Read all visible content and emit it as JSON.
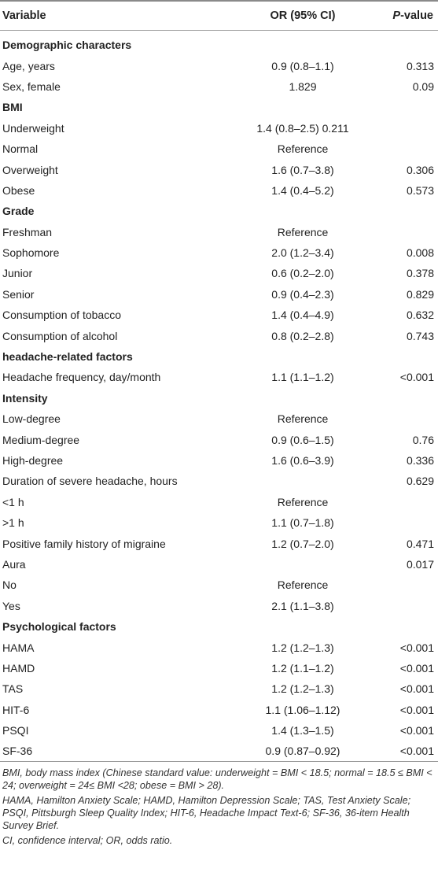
{
  "header": {
    "col1": "Variable",
    "col2": "OR (95% CI)",
    "col3_italic": "P",
    "col3_rest": "-value"
  },
  "rows": [
    {
      "variable": "Demographic characters",
      "or": "",
      "p": "",
      "section": true
    },
    {
      "variable": "Age, years",
      "or": "0.9 (0.8–1.1)",
      "p": "0.313",
      "section": false
    },
    {
      "variable": "Sex, female",
      "or": "1.829",
      "p": "0.09",
      "section": false
    },
    {
      "variable": "BMI",
      "or": "",
      "p": "",
      "section": true
    },
    {
      "variable": "Underweight",
      "or": "1.4 (0.8–2.5) 0.211",
      "p": "",
      "section": false
    },
    {
      "variable": "Normal",
      "or": "Reference",
      "p": "",
      "section": false
    },
    {
      "variable": "Overweight",
      "or": "1.6 (0.7–3.8)",
      "p": "0.306",
      "section": false
    },
    {
      "variable": "Obese",
      "or": "1.4 (0.4–5.2)",
      "p": "0.573",
      "section": false
    },
    {
      "variable": "Grade",
      "or": "",
      "p": "",
      "section": true
    },
    {
      "variable": "Freshman",
      "or": "Reference",
      "p": "",
      "section": false
    },
    {
      "variable": "Sophomore",
      "or": "2.0 (1.2–3.4)",
      "p": "0.008",
      "section": false
    },
    {
      "variable": "Junior",
      "or": "0.6 (0.2–2.0)",
      "p": "0.378",
      "section": false
    },
    {
      "variable": "Senior",
      "or": "0.9 (0.4–2.3)",
      "p": "0.829",
      "section": false
    },
    {
      "variable": "Consumption of tobacco",
      "or": "1.4 (0.4–4.9)",
      "p": "0.632",
      "section": false
    },
    {
      "variable": "Consumption of alcohol",
      "or": "0.8 (0.2–2.8)",
      "p": "0.743",
      "section": false
    },
    {
      "variable": "headache-related factors",
      "or": "",
      "p": "",
      "section": true
    },
    {
      "variable": "Headache frequency, day/month",
      "or": "1.1 (1.1–1.2)",
      "p": "<0.001",
      "section": false
    },
    {
      "variable": "Intensity",
      "or": "",
      "p": "",
      "section": true
    },
    {
      "variable": "Low-degree",
      "or": "Reference",
      "p": "",
      "section": false
    },
    {
      "variable": "Medium-degree",
      "or": "0.9 (0.6–1.5)",
      "p": "0.76",
      "section": false
    },
    {
      "variable": "High-degree",
      "or": "1.6 (0.6–3.9)",
      "p": "0.336",
      "section": false
    },
    {
      "variable": "Duration of severe headache, hours",
      "or": "",
      "p": "0.629",
      "section": false
    },
    {
      "variable": "<1 h",
      "or": "Reference",
      "p": "",
      "section": false
    },
    {
      "variable": ">1 h",
      "or": "1.1 (0.7–1.8)",
      "p": "",
      "section": false
    },
    {
      "variable": "Positive family history of migraine",
      "or": "1.2 (0.7–2.0)",
      "p": "0.471",
      "section": false
    },
    {
      "variable": "Aura",
      "or": "",
      "p": "0.017",
      "section": false
    },
    {
      "variable": "No",
      "or": "Reference",
      "p": "",
      "section": false
    },
    {
      "variable": "Yes",
      "or": "2.1 (1.1–3.8)",
      "p": "",
      "section": false
    },
    {
      "variable": "Psychological factors",
      "or": "",
      "p": "",
      "section": true
    },
    {
      "variable": "HAMA",
      "or": "1.2 (1.2–1.3)",
      "p": "<0.001",
      "section": false
    },
    {
      "variable": "HAMD",
      "or": "1.2 (1.1–1.2)",
      "p": "<0.001",
      "section": false
    },
    {
      "variable": "TAS",
      "or": "1.2 (1.2–1.3)",
      "p": "<0.001",
      "section": false
    },
    {
      "variable": "HIT-6",
      "or": "1.1 (1.06–1.12)",
      "p": "<0.001",
      "section": false
    },
    {
      "variable": "PSQI",
      "or": "1.4 (1.3–1.5)",
      "p": "<0.001",
      "section": false
    },
    {
      "variable": "SF-36",
      "or": "0.9 (0.87–0.92)",
      "p": "<0.001",
      "section": false
    }
  ],
  "footnotes": [
    "BMI, body mass index (Chinese standard value: underweight = BMI < 18.5; normal = 18.5 ≤ BMI < 24; overweight = 24≤ BMI <28; obese = BMI > 28).",
    "HAMA, Hamilton Anxiety Scale; HAMD, Hamilton Depression Scale; TAS, Test Anxiety Scale; PSQI, Pittsburgh Sleep Quality Index; HIT-6, Headache Impact Text-6; SF-36, 36-item Health Survey Brief.",
    "CI, confidence interval; OR, odds ratio."
  ]
}
